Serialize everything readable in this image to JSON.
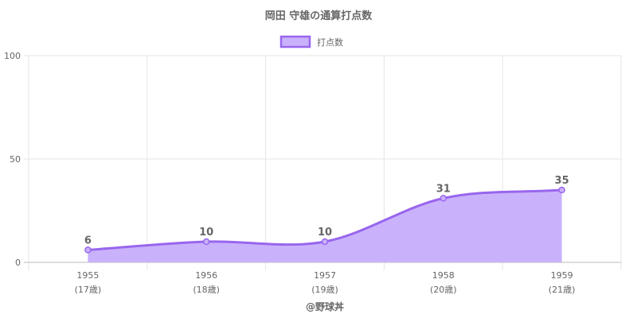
{
  "colors": {
    "line": "#9966ee",
    "fill": "#c9b2fb",
    "grid": "#e6e6e6",
    "axis": "#bbbbbb",
    "text": "#666666"
  },
  "chart_data": {
    "type": "area",
    "title": "岡田 守雄の通算打点数",
    "categories": [
      "1955",
      "1956",
      "1957",
      "1958",
      "1959"
    ],
    "category_sublabels": [
      "(17歳)",
      "(18歳)",
      "(19歳)",
      "(20歳)",
      "(21歳)"
    ],
    "series": [
      {
        "name": "打点数",
        "values": [
          6,
          10,
          10,
          31,
          35
        ]
      }
    ],
    "ylim": [
      0,
      100
    ],
    "yticks": [
      0,
      50,
      100
    ],
    "grid": true,
    "legend": "top-center",
    "data_labels": true,
    "credit": "@野球丼"
  }
}
